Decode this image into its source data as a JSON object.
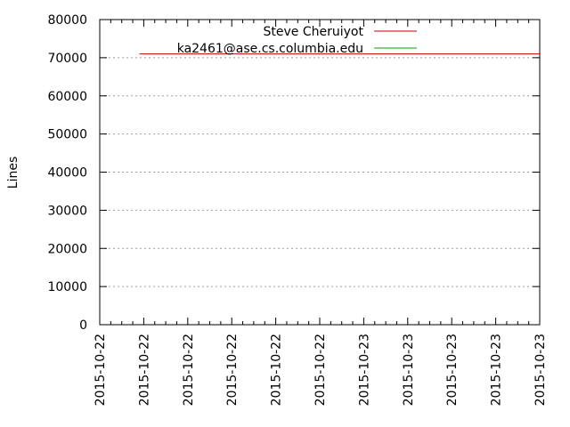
{
  "chart_data": {
    "type": "line",
    "title": "",
    "xlabel": "",
    "ylabel": "Lines",
    "ylim": [
      0,
      80000
    ],
    "y_ticks": [
      0,
      10000,
      20000,
      30000,
      40000,
      50000,
      60000,
      70000,
      80000
    ],
    "x_ticks": [
      "2015-10-22",
      "2015-10-22",
      "2015-10-22",
      "2015-10-22",
      "2015-10-22",
      "2015-10-22",
      "2015-10-23",
      "2015-10-23",
      "2015-10-23",
      "2015-10-23",
      "2015-10-23"
    ],
    "grid": {
      "horizontal": true,
      "vertical": false,
      "style": "dotted"
    },
    "legend_position": "top-right",
    "series": [
      {
        "name": "Steve Cheruiyot",
        "color": "#c00000",
        "x": [
          0.09,
          1.0
        ],
        "y": [
          71000,
          71000
        ]
      },
      {
        "name": "ka2461@ase.cs.columbia.edu",
        "color": "#00a000",
        "x": [],
        "y": []
      }
    ]
  }
}
